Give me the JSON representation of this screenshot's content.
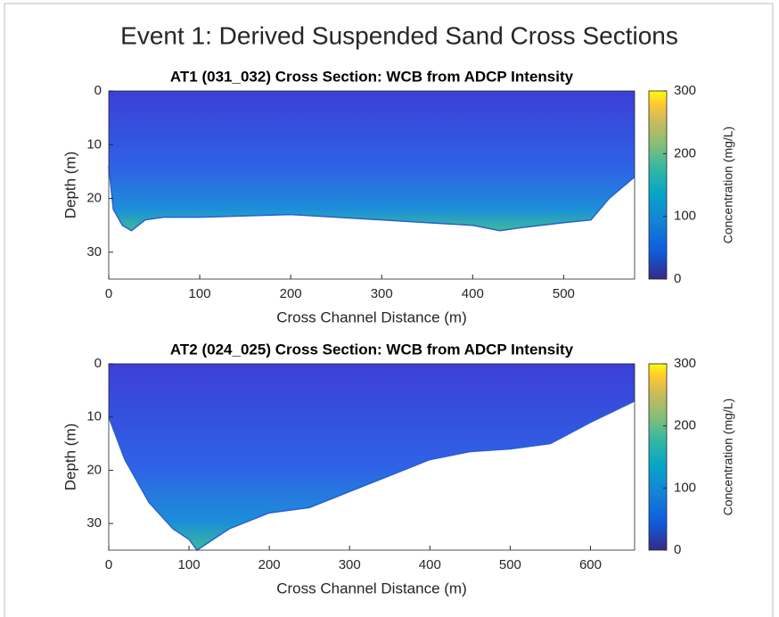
{
  "title": "Event 1: Derived Suspended Sand Cross Sections",
  "chart_data": [
    {
      "type": "cross_section",
      "title": "AT1 (031_032) Cross Section: WCB from ADCP Intensity",
      "xlabel": "Cross Channel Distance (m)",
      "ylabel": "Depth (m)",
      "x": [
        0,
        5,
        15,
        25,
        40,
        60,
        100,
        200,
        250,
        300,
        350,
        400,
        430,
        450,
        500,
        530,
        550,
        578
      ],
      "values": [
        14,
        22,
        25,
        26,
        24,
        23.5,
        23.5,
        23,
        23.5,
        24,
        24.5,
        25,
        26,
        25.5,
        24.5,
        24,
        20,
        16
      ],
      "xlim": [
        0,
        578
      ],
      "xticks": [
        0,
        100,
        200,
        300,
        400,
        500
      ],
      "ylim": [
        0,
        35
      ],
      "yticks": [
        0,
        10,
        20,
        30
      ],
      "y_reversed": true,
      "colorbar": {
        "label": "Concentration (mg/L)",
        "lim": [
          0,
          300
        ],
        "ticks": [
          0,
          100,
          200,
          300
        ]
      }
    },
    {
      "type": "cross_section",
      "title": "AT2 (024_025) Cross Section: WCB from ADCP Intensity",
      "xlabel": "Cross Channel Distance (m)",
      "ylabel": "Depth (m)",
      "x": [
        0,
        20,
        50,
        80,
        100,
        110,
        120,
        150,
        200,
        250,
        300,
        350,
        400,
        450,
        500,
        550,
        600,
        655
      ],
      "values": [
        10,
        18,
        26,
        31,
        33,
        35,
        34,
        31,
        28,
        27,
        24,
        21,
        18,
        16.5,
        16,
        15,
        11,
        7
      ],
      "xlim": [
        0,
        655
      ],
      "xticks": [
        0,
        100,
        200,
        300,
        400,
        500,
        600
      ],
      "ylim": [
        0,
        35
      ],
      "yticks": [
        0,
        10,
        20,
        30
      ],
      "y_reversed": true,
      "colorbar": {
        "label": "Concentration (mg/L)",
        "lim": [
          0,
          300
        ],
        "ticks": [
          0,
          100,
          200,
          300
        ]
      }
    }
  ]
}
